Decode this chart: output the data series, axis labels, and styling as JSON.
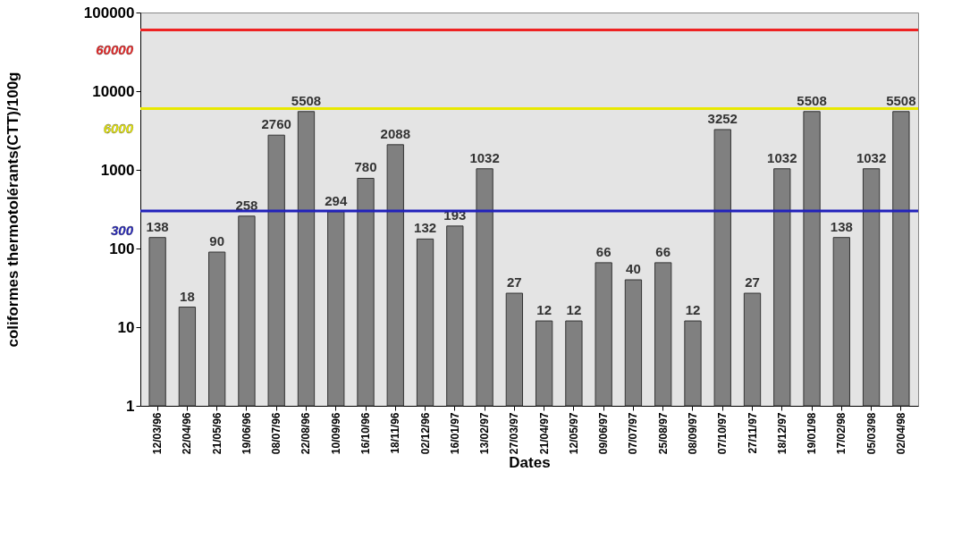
{
  "chart_data": {
    "type": "bar",
    "xlabel": "Dates",
    "ylabel": "coliformes thermotolérants(CTT)/100g",
    "categories": [
      "12/03/96",
      "22/04/96",
      "21/05/96",
      "19/06/96",
      "08/07/96",
      "22/08/96",
      "10/09/96",
      "16/10/96",
      "18/11/96",
      "02/12/96",
      "16/01/97",
      "13/02/97",
      "27/03/97",
      "21/04/97",
      "12/05/97",
      "09/06/97",
      "07/07/97",
      "25/08/97",
      "08/09/97",
      "07/10/97",
      "27/11/97",
      "18/12/97",
      "19/01/98",
      "17/02/98",
      "05/03/98",
      "02/04/98"
    ],
    "series": [
      {
        "color": "#808080",
        "values": [
          138,
          18,
          90,
          258,
          2760,
          5508,
          294,
          780,
          2088,
          132,
          193,
          1032,
          27,
          12,
          12,
          66,
          40,
          66,
          12,
          3252,
          27,
          1032,
          5508,
          138,
          1032,
          5508
        ]
      }
    ],
    "log": "y",
    "ylim": [
      1,
      100000
    ],
    "yticks": [
      1,
      10,
      100,
      1000,
      10000,
      100000
    ],
    "data_labels": true,
    "grid": false,
    "ref_lines": [
      {
        "axis": "y",
        "value": 60000,
        "label": "60000",
        "color": "#ee2222"
      },
      {
        "axis": "y",
        "value": 6000,
        "label": "6000",
        "color": "#e8e800"
      },
      {
        "axis": "y",
        "value": 300,
        "label": "300",
        "color": "#2222bb"
      }
    ]
  }
}
